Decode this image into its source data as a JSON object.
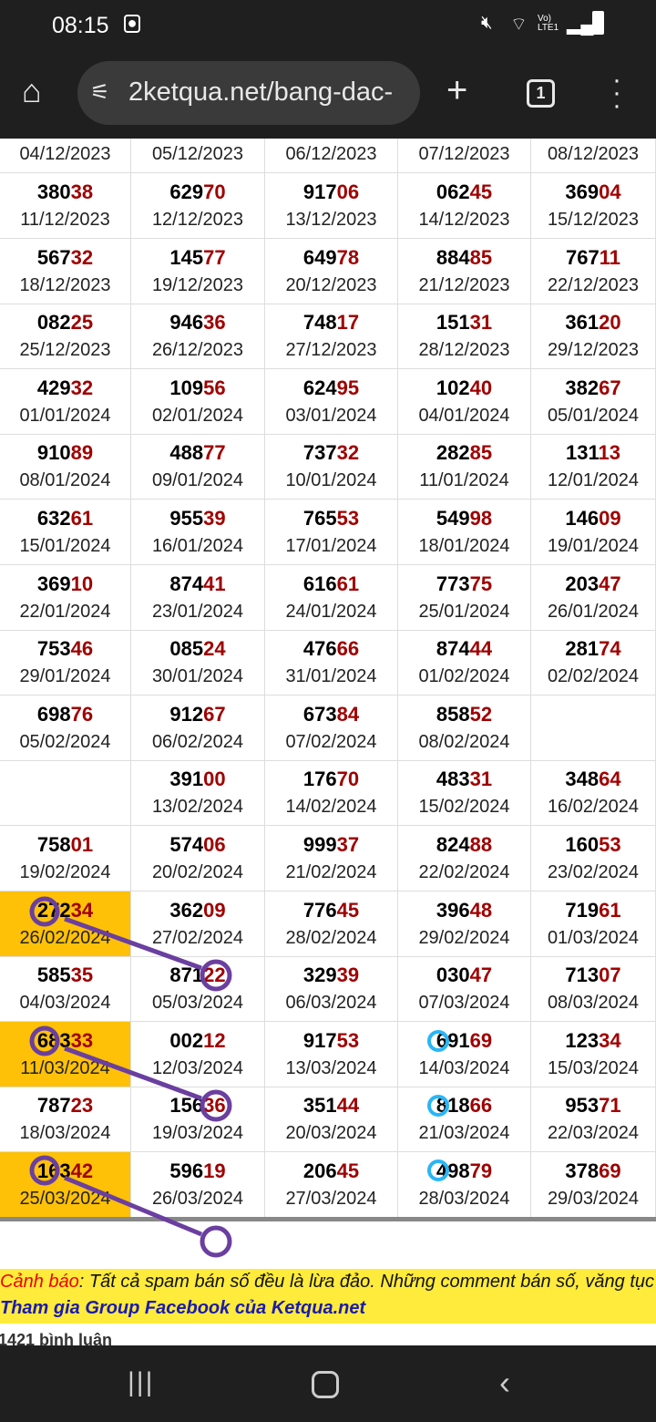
{
  "status": {
    "time": "08:15",
    "icons": [
      "notification-icon",
      "mute-icon",
      "wifi-icon",
      "volte-icon",
      "signal-icon",
      "battery-icon"
    ],
    "volte": "Vo) LTE1"
  },
  "browser": {
    "url": "2ketqua.net/bang-dac-",
    "tab_count": "1",
    "icons": [
      "home-icon",
      "site-settings-icon",
      "new-tab-icon",
      "tab-switcher-icon",
      "menu-icon"
    ]
  },
  "colors": {
    "highlight": "#ffc107",
    "tail": "#a00000",
    "annotation": "#6a3fa0",
    "marker": "#29b6f6",
    "banner": "#ffeb3b"
  },
  "top_dates": [
    "04/12/2023",
    "05/12/2023",
    "06/12/2023",
    "07/12/2023",
    "08/12/2023"
  ],
  "rows": [
    [
      [
        "38038",
        "11/12/2023"
      ],
      [
        "62970",
        "12/12/2023"
      ],
      [
        "91706",
        "13/12/2023"
      ],
      [
        "06245",
        "14/12/2023"
      ],
      [
        "36904",
        "15/12/2023"
      ]
    ],
    [
      [
        "56732",
        "18/12/2023"
      ],
      [
        "14577",
        "19/12/2023"
      ],
      [
        "64978",
        "20/12/2023"
      ],
      [
        "88485",
        "21/12/2023"
      ],
      [
        "76711",
        "22/12/2023"
      ]
    ],
    [
      [
        "08225",
        "25/12/2023"
      ],
      [
        "94636",
        "26/12/2023"
      ],
      [
        "74817",
        "27/12/2023"
      ],
      [
        "15131",
        "28/12/2023"
      ],
      [
        "36120",
        "29/12/2023"
      ]
    ],
    [
      [
        "42932",
        "01/01/2024"
      ],
      [
        "10956",
        "02/01/2024"
      ],
      [
        "62495",
        "03/01/2024"
      ],
      [
        "10240",
        "04/01/2024"
      ],
      [
        "38267",
        "05/01/2024"
      ]
    ],
    [
      [
        "91089",
        "08/01/2024"
      ],
      [
        "48877",
        "09/01/2024"
      ],
      [
        "73732",
        "10/01/2024"
      ],
      [
        "28285",
        "11/01/2024"
      ],
      [
        "13113",
        "12/01/2024"
      ]
    ],
    [
      [
        "63261",
        "15/01/2024"
      ],
      [
        "95539",
        "16/01/2024"
      ],
      [
        "76553",
        "17/01/2024"
      ],
      [
        "54998",
        "18/01/2024"
      ],
      [
        "14609",
        "19/01/2024"
      ]
    ],
    [
      [
        "36910",
        "22/01/2024"
      ],
      [
        "87441",
        "23/01/2024"
      ],
      [
        "61661",
        "24/01/2024"
      ],
      [
        "77375",
        "25/01/2024"
      ],
      [
        "20347",
        "26/01/2024"
      ]
    ],
    [
      [
        "75346",
        "29/01/2024"
      ],
      [
        "08524",
        "30/01/2024"
      ],
      [
        "47666",
        "31/01/2024"
      ],
      [
        "87444",
        "01/02/2024"
      ],
      [
        "28174",
        "02/02/2024"
      ]
    ],
    [
      [
        "69876",
        "05/02/2024"
      ],
      [
        "91267",
        "06/02/2024"
      ],
      [
        "67384",
        "07/02/2024"
      ],
      [
        "85852",
        "08/02/2024"
      ],
      null
    ],
    [
      null,
      [
        "39100",
        "13/02/2024"
      ],
      [
        "17670",
        "14/02/2024"
      ],
      [
        "48331",
        "15/02/2024"
      ],
      [
        "34864",
        "16/02/2024"
      ]
    ],
    [
      [
        "75801",
        "19/02/2024"
      ],
      [
        "57406",
        "20/02/2024"
      ],
      [
        "99937",
        "21/02/2024"
      ],
      [
        "82488",
        "22/02/2024"
      ],
      [
        "16053",
        "23/02/2024"
      ]
    ],
    [
      [
        "27234",
        "26/02/2024"
      ],
      [
        "36209",
        "27/02/2024"
      ],
      [
        "77645",
        "28/02/2024"
      ],
      [
        "39648",
        "29/02/2024"
      ],
      [
        "71961",
        "01/03/2024"
      ]
    ],
    [
      [
        "58535",
        "04/03/2024"
      ],
      [
        "87122",
        "05/03/2024"
      ],
      [
        "32939",
        "06/03/2024"
      ],
      [
        "03047",
        "07/03/2024"
      ],
      [
        "71307",
        "08/03/2024"
      ]
    ],
    [
      [
        "68333",
        "11/03/2024"
      ],
      [
        "00212",
        "12/03/2024"
      ],
      [
        "91753",
        "13/03/2024"
      ],
      [
        "69169",
        "14/03/2024"
      ],
      [
        "12334",
        "15/03/2024"
      ]
    ],
    [
      [
        "78723",
        "18/03/2024"
      ],
      [
        "15636",
        "19/03/2024"
      ],
      [
        "35144",
        "20/03/2024"
      ],
      [
        "81866",
        "21/03/2024"
      ],
      [
        "95371",
        "22/03/2024"
      ]
    ],
    [
      [
        "16342",
        "25/03/2024"
      ],
      [
        "59619",
        "26/03/2024"
      ],
      [
        "20645",
        "27/03/2024"
      ],
      [
        "49879",
        "28/03/2024"
      ],
      [
        "37869",
        "29/03/2024"
      ]
    ]
  ],
  "highlighted_rows": [
    11,
    13,
    15
  ],
  "banner": {
    "warn_label": "Cảnh báo",
    "warn_text": ": Tất cả spam bán số đều là lừa đảo. Những comment bán số, văng tục",
    "group_link": "Tham gia Group Facebook của Ketqua.net"
  },
  "comments": "1421 bình luận",
  "nav": {
    "icons": [
      "recents-icon",
      "home-nav-icon",
      "back-icon"
    ]
  }
}
